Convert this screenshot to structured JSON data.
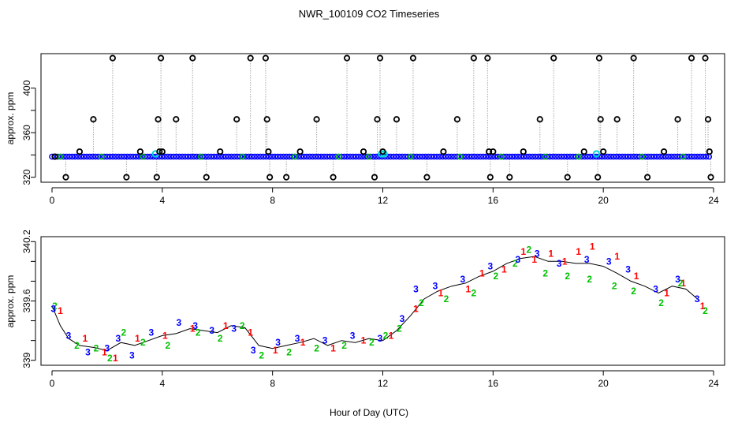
{
  "chart_data": [
    {
      "type": "scatter",
      "title": "NWR_100109  CO2 Timeseries",
      "xlabel": "",
      "ylabel": "approx. ppm",
      "xlim": [
        -0.4,
        24.4
      ],
      "ylim": [
        315.5,
        431
      ],
      "xticks": [
        0,
        4,
        8,
        12,
        16,
        20,
        24
      ],
      "yticks": [
        320,
        360,
        400
      ],
      "yticks_minor": [
        340,
        380
      ],
      "colors": {
        "raw": "#000000",
        "baseline": "#0000ff",
        "aux": "#00c000",
        "hl": "#00d8d8",
        "drop": "#aaaaaa"
      },
      "baseline": 338.5,
      "series": [
        {
          "name": "outliers",
          "x": [
            0.1,
            0.5,
            1.0,
            1.5,
            2.2,
            2.7,
            3.2,
            3.8,
            3.85,
            3.9,
            3.95,
            4.0,
            4.5,
            5.1,
            5.6,
            6.1,
            6.7,
            7.2,
            7.75,
            7.8,
            7.85,
            7.9,
            8.5,
            9.0,
            9.6,
            10.2,
            10.7,
            11.3,
            11.7,
            11.8,
            11.9,
            12.0,
            12.5,
            13.1,
            13.6,
            14.2,
            14.7,
            15.3,
            15.8,
            15.85,
            15.9,
            16.0,
            16.6,
            17.1,
            17.7,
            18.2,
            18.7,
            19.3,
            19.8,
            19.85,
            19.9,
            20.0,
            20.5,
            21.1,
            21.6,
            22.2,
            22.7,
            23.2,
            23.7,
            23.8,
            23.85,
            23.9
          ],
          "y": [
            338.5,
            320,
            343,
            372,
            427,
            320,
            343,
            320,
            372,
            343,
            427,
            343,
            372,
            427,
            320,
            343,
            372,
            427,
            427,
            372,
            343,
            320,
            320,
            343,
            372,
            320,
            427,
            343,
            320,
            372,
            427,
            343,
            372,
            427,
            320,
            343,
            372,
            427,
            427,
            343,
            320,
            343,
            320,
            343,
            372,
            427,
            320,
            343,
            320,
            427,
            372,
            343,
            372,
            427,
            320,
            343,
            372,
            427,
            427,
            372,
            343,
            320
          ]
        }
      ]
    },
    {
      "type": "scatter",
      "title": "",
      "xlabel": "Hour of Day (UTC)",
      "ylabel": "approx. ppm",
      "xlim": [
        -0.4,
        24.4
      ],
      "ylim": [
        338.95,
        340.25
      ],
      "xticks": [
        0,
        4,
        8,
        12,
        16,
        20,
        24
      ],
      "yticks": [
        339.0,
        339.6,
        340.2
      ],
      "yticks_minor": [
        339.2,
        339.4,
        339.8,
        340.0
      ],
      "colors": {
        "s1": "#ff0000",
        "s2": "#00c000",
        "s3": "#0000ff",
        "line": "#000000"
      },
      "curve": {
        "x": [
          0.0,
          0.3,
          0.6,
          1.0,
          1.5,
          2.0,
          2.5,
          3.0,
          3.5,
          4.0,
          4.5,
          5.0,
          5.5,
          6.0,
          6.5,
          7.0,
          7.5,
          8.0,
          8.5,
          9.0,
          9.5,
          10.0,
          10.5,
          11.0,
          11.5,
          12.0,
          12.5,
          13.0,
          13.5,
          14.0,
          14.5,
          15.0,
          15.5,
          16.0,
          16.5,
          17.0,
          17.5,
          18.0,
          18.5,
          19.0,
          19.5,
          20.0,
          20.5,
          21.0,
          21.5,
          22.0,
          22.5,
          23.0,
          23.5
        ],
        "y": [
          339.55,
          339.35,
          339.22,
          339.15,
          339.13,
          339.1,
          339.18,
          339.15,
          339.2,
          339.25,
          339.27,
          339.32,
          339.3,
          339.28,
          339.35,
          339.33,
          339.15,
          339.12,
          339.15,
          339.18,
          339.22,
          339.15,
          339.2,
          339.18,
          339.22,
          339.2,
          339.3,
          339.45,
          339.62,
          339.7,
          339.75,
          339.78,
          339.85,
          339.9,
          339.98,
          340.03,
          340.05,
          340.0,
          340.0,
          339.98,
          339.98,
          339.95,
          339.88,
          339.8,
          339.75,
          339.68,
          339.75,
          339.72,
          339.6
        ]
      },
      "series": [
        {
          "name": "1",
          "label": "1",
          "x": [
            0.3,
            1.2,
            1.9,
            2.3,
            3.1,
            4.1,
            5.1,
            6.3,
            7.2,
            8.1,
            9.1,
            10.2,
            11.3,
            12.3,
            13.2,
            14.1,
            15.1,
            15.6,
            16.4,
            17.1,
            17.5,
            18.1,
            18.6,
            19.1,
            19.6,
            20.5,
            21.2,
            22.3,
            22.9,
            23.6
          ],
          "y": [
            339.5,
            339.22,
            339.08,
            339.02,
            339.22,
            339.25,
            339.32,
            339.35,
            339.28,
            339.1,
            339.18,
            339.12,
            339.2,
            339.25,
            339.52,
            339.68,
            339.72,
            339.88,
            339.92,
            340.1,
            340.02,
            340.08,
            340.0,
            340.1,
            340.15,
            340.05,
            339.85,
            339.68,
            339.78,
            339.55
          ]
        },
        {
          "name": "2",
          "label": "2",
          "x": [
            0.1,
            0.9,
            1.6,
            2.1,
            2.6,
            3.3,
            4.2,
            5.3,
            6.1,
            6.9,
            7.6,
            8.6,
            9.6,
            10.6,
            11.6,
            12.1,
            12.6,
            13.4,
            14.3,
            15.3,
            16.1,
            16.8,
            17.3,
            17.9,
            18.7,
            19.5,
            20.4,
            21.1,
            22.1,
            22.8,
            23.7
          ],
          "y": [
            339.55,
            339.15,
            339.12,
            339.02,
            339.28,
            339.18,
            339.15,
            339.28,
            339.22,
            339.35,
            339.05,
            339.08,
            339.12,
            339.15,
            339.18,
            339.25,
            339.32,
            339.58,
            339.62,
            339.68,
            339.85,
            339.98,
            340.12,
            339.88,
            339.85,
            339.82,
            339.75,
            339.7,
            339.58,
            339.78,
            339.5
          ]
        },
        {
          "name": "3",
          "label": "3",
          "x": [
            0.05,
            0.6,
            1.3,
            2.0,
            2.4,
            2.9,
            3.6,
            4.6,
            5.2,
            5.8,
            6.6,
            7.3,
            8.2,
            8.9,
            9.9,
            10.9,
            11.9,
            12.7,
            13.2,
            13.9,
            14.9,
            15.9,
            16.9,
            17.6,
            18.4,
            19.4,
            20.2,
            20.9,
            21.9,
            22.7,
            23.4
          ],
          "y": [
            339.52,
            339.25,
            339.08,
            339.12,
            339.22,
            339.05,
            339.28,
            339.38,
            339.35,
            339.3,
            339.32,
            339.1,
            339.18,
            339.22,
            339.2,
            339.25,
            339.22,
            339.42,
            339.72,
            339.75,
            339.82,
            339.95,
            340.02,
            340.08,
            339.98,
            340.02,
            340.0,
            339.92,
            339.72,
            339.82,
            339.62
          ]
        }
      ]
    }
  ]
}
